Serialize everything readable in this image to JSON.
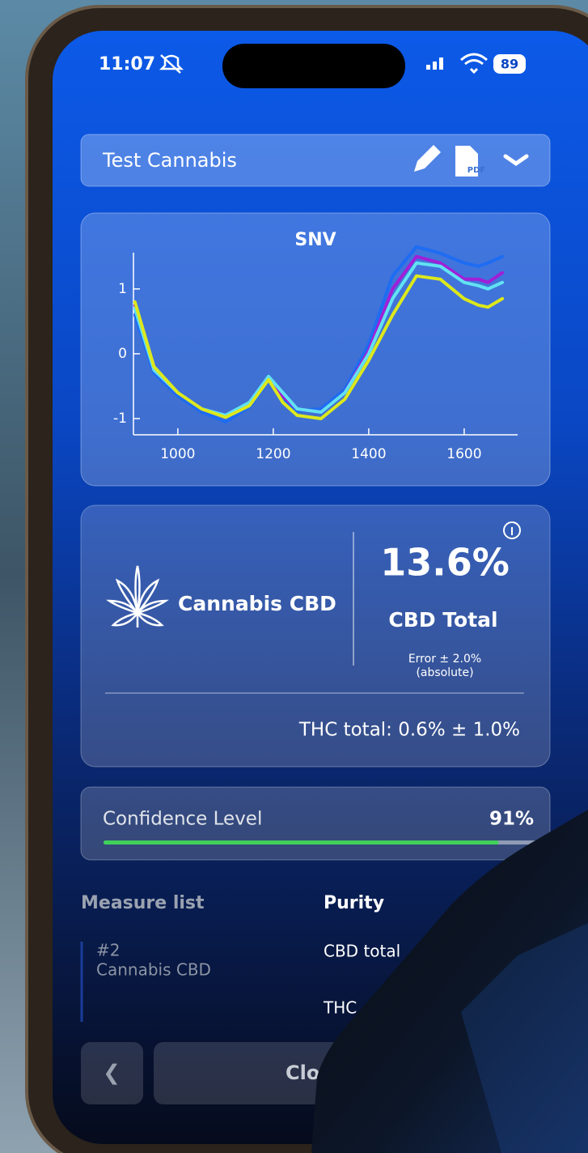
{
  "status_bar": {
    "time": "11:07",
    "battery": 89
  },
  "header": {
    "title": "Test Cannabis",
    "pdf_icon": "PDF"
  },
  "chart_data": {
    "type": "line",
    "title": "SNV",
    "x": [
      910,
      950,
      1000,
      1050,
      1100,
      1150,
      1190,
      1220,
      1250,
      1300,
      1350,
      1400,
      1450,
      1500,
      1550,
      1600,
      1630,
      1650,
      1680
    ],
    "series": [
      {
        "color": "#1e6cf2",
        "values": [
          0.6,
          -0.3,
          -0.65,
          -0.9,
          -1.05,
          -0.82,
          -0.42,
          -0.7,
          -0.88,
          -0.85,
          -0.55,
          0.15,
          1.2,
          1.65,
          1.55,
          1.4,
          1.35,
          1.4,
          1.5
        ]
      },
      {
        "color": "#a01fd8",
        "values": [
          0.75,
          -0.25,
          -0.6,
          -0.85,
          -0.97,
          -0.78,
          -0.38,
          -0.65,
          -0.85,
          -0.9,
          -0.6,
          0.05,
          1.0,
          1.5,
          1.4,
          1.15,
          1.15,
          1.1,
          1.25
        ]
      },
      {
        "color": "#62e2f2",
        "values": [
          0.7,
          -0.25,
          -0.6,
          -0.85,
          -0.95,
          -0.75,
          -0.35,
          -0.6,
          -0.85,
          -0.9,
          -0.6,
          0.0,
          0.85,
          1.4,
          1.35,
          1.1,
          1.05,
          1.0,
          1.1
        ]
      },
      {
        "color": "#dce81c",
        "values": [
          0.8,
          -0.2,
          -0.6,
          -0.85,
          -0.98,
          -0.8,
          -0.4,
          -0.75,
          -0.95,
          -1.0,
          -0.7,
          -0.1,
          0.6,
          1.2,
          1.15,
          0.85,
          0.75,
          0.72,
          0.85
        ]
      }
    ],
    "xlim": [
      907,
      1712
    ],
    "ylim": [
      -1.25,
      1.56
    ],
    "xticks": [
      1000,
      1200,
      1400,
      1600
    ],
    "yticks": [
      -1,
      0,
      1
    ]
  },
  "result": {
    "product": "Cannabis CBD",
    "value": "13.6%",
    "label": "CBD Total",
    "error": "Error ± 2.0%",
    "error_note": "(absolute)",
    "thc": "THC total: 0.6% ± 1.0%"
  },
  "confidence": {
    "label": "Confidence Level",
    "value": 91,
    "value_label": "91%"
  },
  "measure_list": {
    "title": "Measure list",
    "item_number": "#2",
    "item_name": "Cannabis CBD"
  },
  "purity": {
    "title": "Purity",
    "rows": [
      "CBD total",
      "THC"
    ]
  },
  "buttons": {
    "back": "❮",
    "close": "Close"
  }
}
